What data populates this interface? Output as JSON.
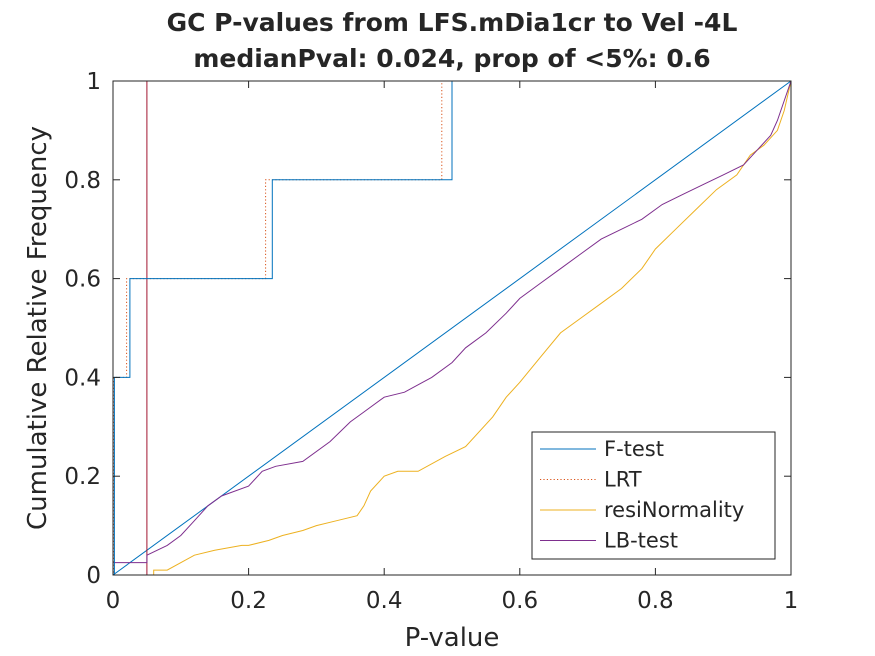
{
  "chart_data": {
    "type": "line",
    "title": "GC P-values from LFS.mDia1cr to Vel -4L",
    "subtitle": "medianPval: 0.024, prop of <5%: 0.6",
    "xlabel": "P-value",
    "ylabel": "Cumulative Relative Frequency",
    "xlim": [
      0,
      1
    ],
    "ylim": [
      0,
      1
    ],
    "xticks": [
      0,
      0.2,
      0.4,
      0.6,
      0.8,
      1
    ],
    "yticks": [
      0,
      0.2,
      0.4,
      0.6,
      0.8,
      1
    ],
    "xtick_labels": [
      "0",
      "0.2",
      "0.4",
      "0.6",
      "0.8",
      "1"
    ],
    "ytick_labels": [
      "0",
      "0.2",
      "0.4",
      "0.6",
      "0.8",
      "1"
    ],
    "grid": false,
    "legend_position": "bottom-right",
    "threshold_x": 0.05,
    "threshold_color": "#a2142f",
    "series": [
      {
        "name": "F-test",
        "color": "#0072bd",
        "style": "solid",
        "kind": "step",
        "x": [
          0,
          0.002,
          0.025,
          0.235,
          0.5,
          1
        ],
        "y": [
          0,
          0.4,
          0.6,
          0.8,
          1.0,
          1.0
        ]
      },
      {
        "name": "LRT",
        "color": "#d95319",
        "style": "dotted",
        "kind": "step",
        "x": [
          0,
          0.0015,
          0.02,
          0.225,
          0.485,
          1
        ],
        "y": [
          0,
          0.4,
          0.6,
          0.8,
          1.0,
          1.0
        ]
      },
      {
        "name": "resiNormality",
        "color": "#edb120",
        "style": "solid",
        "kind": "line",
        "x": [
          0.06,
          0.06,
          0.08,
          0.12,
          0.15,
          0.19,
          0.2,
          0.23,
          0.25,
          0.28,
          0.3,
          0.33,
          0.36,
          0.37,
          0.38,
          0.4,
          0.42,
          0.45,
          0.49,
          0.52,
          0.56,
          0.58,
          0.6,
          0.63,
          0.66,
          0.69,
          0.72,
          0.75,
          0.78,
          0.8,
          0.83,
          0.86,
          0.89,
          0.92,
          0.94,
          0.96,
          0.98,
          0.99,
          1.0
        ],
        "y": [
          0,
          0.01,
          0.01,
          0.04,
          0.05,
          0.06,
          0.06,
          0.07,
          0.08,
          0.09,
          0.1,
          0.11,
          0.12,
          0.14,
          0.17,
          0.2,
          0.21,
          0.21,
          0.24,
          0.26,
          0.32,
          0.36,
          0.39,
          0.44,
          0.49,
          0.52,
          0.55,
          0.58,
          0.62,
          0.66,
          0.7,
          0.74,
          0.78,
          0.81,
          0.85,
          0.87,
          0.9,
          0.94,
          1.0
        ]
      },
      {
        "name": "LB-test",
        "color": "#7e2f8e",
        "style": "solid",
        "kind": "line",
        "x": [
          0,
          0.05,
          0.05,
          0.08,
          0.1,
          0.12,
          0.14,
          0.16,
          0.2,
          0.22,
          0.24,
          0.28,
          0.32,
          0.35,
          0.37,
          0.4,
          0.43,
          0.47,
          0.5,
          0.52,
          0.55,
          0.58,
          0.6,
          0.63,
          0.66,
          0.69,
          0.72,
          0.75,
          0.78,
          0.81,
          0.84,
          0.87,
          0.9,
          0.93,
          0.95,
          0.97,
          0.98,
          1.0
        ],
        "y": [
          0.025,
          0.025,
          0.04,
          0.06,
          0.08,
          0.11,
          0.14,
          0.16,
          0.18,
          0.21,
          0.22,
          0.23,
          0.27,
          0.31,
          0.33,
          0.36,
          0.37,
          0.4,
          0.43,
          0.46,
          0.49,
          0.53,
          0.56,
          0.59,
          0.62,
          0.65,
          0.68,
          0.7,
          0.72,
          0.75,
          0.77,
          0.79,
          0.81,
          0.83,
          0.86,
          0.89,
          0.92,
          1.0
        ]
      }
    ]
  }
}
